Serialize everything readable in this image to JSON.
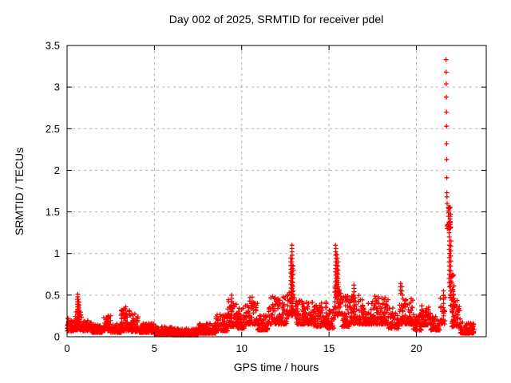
{
  "figure": {
    "title": "Day 002 of 2025, SRMTID for receiver pdel",
    "xlabel": "GPS time / hours",
    "ylabel": "SRMTID / TECUs"
  },
  "chart_data": {
    "type": "scatter",
    "title": "Day 002 of 2025, SRMTID for receiver pdel",
    "xlabel": "GPS time / hours",
    "ylabel": "SRMTID / TECUs",
    "xlim": [
      0,
      24
    ],
    "ylim": [
      0,
      3.5
    ],
    "x_ticks": [
      0,
      5,
      10,
      15,
      20
    ],
    "x_tick_labels": [
      "0",
      "5",
      "10",
      "15",
      "20"
    ],
    "y_ticks": [
      0,
      0.5,
      1,
      1.5,
      2,
      2.5,
      3,
      3.5
    ],
    "y_tick_labels": [
      "0",
      "0.5",
      "1",
      "1.5",
      "2",
      "2.5",
      "3",
      "3.5"
    ],
    "grid": true,
    "legend_position": "none",
    "marker": "plus",
    "marker_color": "#ff0000",
    "grid_color": "#b0b0b0",
    "axis_color": "#000000",
    "max_point": {
      "t": 21.7,
      "v": 3.33
    },
    "band_envelope": [
      [
        0.0,
        0.4,
        0.07,
        0.22,
        45
      ],
      [
        0.4,
        0.9,
        0.08,
        0.3,
        55
      ],
      [
        0.9,
        1.4,
        0.07,
        0.2,
        55
      ],
      [
        1.4,
        2.1,
        0.05,
        0.15,
        85
      ],
      [
        2.1,
        2.5,
        0.07,
        0.26,
        50
      ],
      [
        2.5,
        3.1,
        0.05,
        0.16,
        75
      ],
      [
        3.1,
        3.6,
        0.07,
        0.34,
        60
      ],
      [
        3.6,
        4.1,
        0.06,
        0.28,
        55
      ],
      [
        4.1,
        5.0,
        0.05,
        0.16,
        110
      ],
      [
        5.0,
        6.0,
        0.03,
        0.12,
        120
      ],
      [
        6.0,
        7.5,
        0.02,
        0.1,
        170
      ],
      [
        7.5,
        8.5,
        0.04,
        0.16,
        120
      ],
      [
        8.5,
        9.2,
        0.07,
        0.27,
        70
      ],
      [
        9.2,
        9.7,
        0.12,
        0.46,
        55
      ],
      [
        9.7,
        10.2,
        0.1,
        0.35,
        55
      ],
      [
        10.2,
        10.9,
        0.15,
        0.48,
        75
      ],
      [
        10.9,
        11.5,
        0.08,
        0.26,
        65
      ],
      [
        11.5,
        12.6,
        0.15,
        0.5,
        115
      ],
      [
        12.6,
        13.1,
        0.25,
        0.55,
        55
      ],
      [
        13.1,
        14.1,
        0.15,
        0.45,
        110
      ],
      [
        14.1,
        14.9,
        0.12,
        0.42,
        85
      ],
      [
        14.9,
        15.3,
        0.1,
        0.35,
        42
      ],
      [
        15.3,
        15.7,
        0.25,
        0.6,
        42
      ],
      [
        15.7,
        16.2,
        0.12,
        0.5,
        52
      ],
      [
        16.2,
        16.7,
        0.15,
        0.5,
        50
      ],
      [
        16.7,
        17.6,
        0.15,
        0.45,
        90
      ],
      [
        17.6,
        18.4,
        0.15,
        0.5,
        85
      ],
      [
        18.4,
        19.0,
        0.1,
        0.35,
        58
      ],
      [
        19.0,
        19.8,
        0.15,
        0.47,
        78
      ],
      [
        19.8,
        20.3,
        0.08,
        0.28,
        48
      ],
      [
        20.3,
        20.8,
        0.14,
        0.38,
        52
      ],
      [
        20.8,
        21.35,
        0.08,
        0.25,
        52
      ],
      [
        21.35,
        21.65,
        0.15,
        0.5,
        22
      ],
      [
        21.76,
        21.96,
        1.3,
        1.57,
        32
      ],
      [
        21.95,
        22.15,
        0.35,
        0.75,
        32
      ],
      [
        22.0,
        22.5,
        0.12,
        0.45,
        58
      ],
      [
        22.5,
        23.3,
        0.04,
        0.18,
        75
      ]
    ],
    "spike_columns": [
      [
        0.6,
        0.12,
        0.52,
        0.03
      ],
      [
        0.64,
        0.12,
        0.47,
        0.03
      ],
      [
        0.68,
        0.1,
        0.42,
        0.035
      ],
      [
        2.3,
        0.1,
        0.25,
        0.04
      ],
      [
        3.35,
        0.12,
        0.38,
        0.04
      ],
      [
        9.42,
        0.18,
        0.5,
        0.04
      ],
      [
        12.82,
        0.45,
        0.95,
        0.045
      ],
      [
        12.88,
        0.5,
        1.11,
        0.04
      ],
      [
        12.93,
        0.4,
        0.85,
        0.05
      ],
      [
        15.38,
        0.5,
        1.1,
        0.04
      ],
      [
        15.45,
        0.45,
        1.03,
        0.045
      ],
      [
        15.52,
        0.4,
        0.9,
        0.05
      ],
      [
        16.42,
        0.3,
        0.62,
        0.04
      ],
      [
        19.1,
        0.52,
        0.67,
        0.04
      ],
      [
        19.18,
        0.5,
        0.6,
        0.05
      ],
      [
        21.55,
        0.2,
        0.55,
        0.05
      ],
      [
        21.88,
        0.6,
        1.3,
        0.05
      ],
      [
        21.97,
        0.55,
        1.2,
        0.06
      ]
    ],
    "isolated_points": [
      [
        21.7,
        3.33
      ],
      [
        21.705,
        3.18
      ],
      [
        21.71,
        3.04
      ],
      [
        21.715,
        2.88
      ],
      [
        21.72,
        2.7
      ],
      [
        21.725,
        2.53
      ],
      [
        21.73,
        2.32
      ],
      [
        21.735,
        2.13
      ],
      [
        21.74,
        1.91
      ],
      [
        21.745,
        1.73
      ],
      [
        21.75,
        1.68
      ],
      [
        21.76,
        1.6
      ]
    ]
  }
}
